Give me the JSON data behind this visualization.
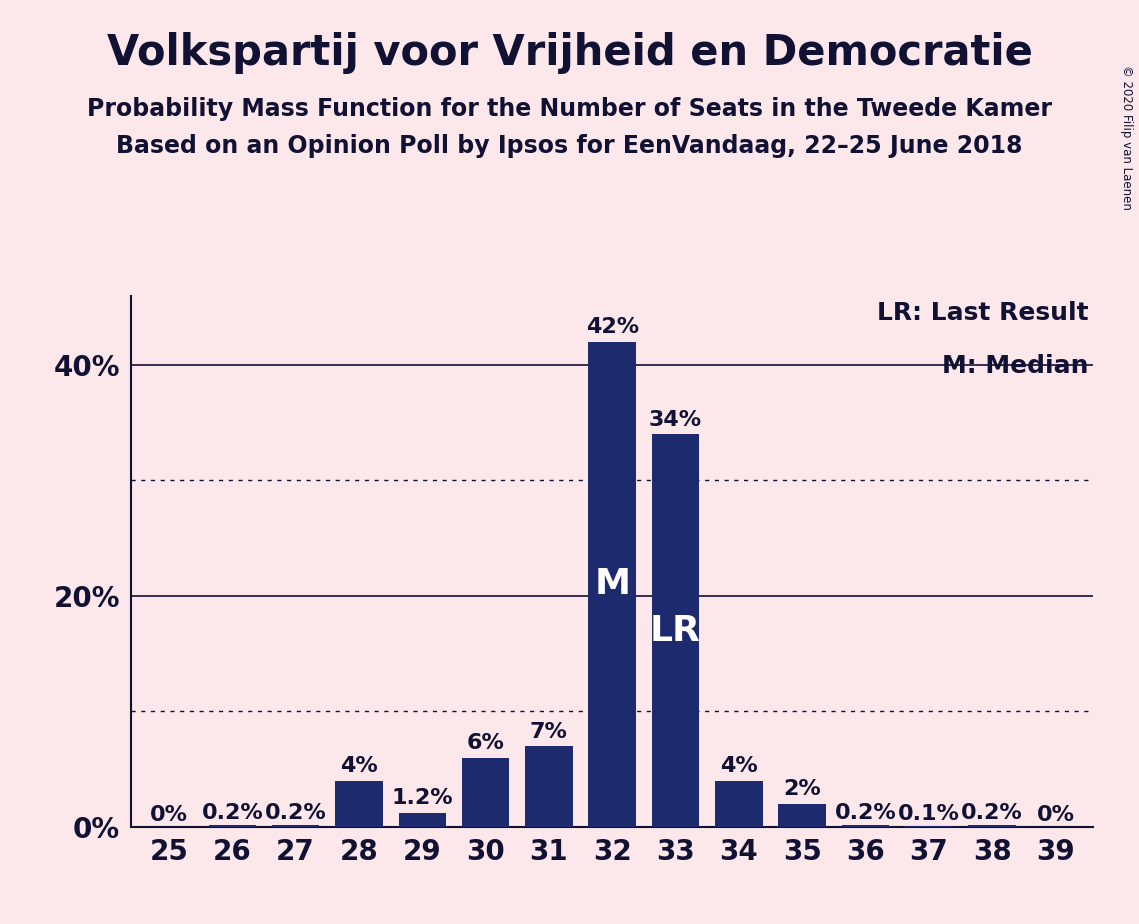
{
  "title": "Volkspartij voor Vrijheid en Democratie",
  "subtitle1": "Probability Mass Function for the Number of Seats in the Tweede Kamer",
  "subtitle2": "Based on an Opinion Poll by Ipsos for EenVandaag, 22–25 June 2018",
  "copyright": "© 2020 Filip van Laenen",
  "seats": [
    25,
    26,
    27,
    28,
    29,
    30,
    31,
    32,
    33,
    34,
    35,
    36,
    37,
    38,
    39
  ],
  "probabilities": [
    0.0,
    0.2,
    0.2,
    4.0,
    1.2,
    6.0,
    7.0,
    42.0,
    34.0,
    4.0,
    2.0,
    0.2,
    0.1,
    0.2,
    0.0
  ],
  "labels": [
    "0%",
    "0.2%",
    "0.2%",
    "4%",
    "1.2%",
    "6%",
    "7%",
    "42%",
    "34%",
    "4%",
    "2%",
    "0.2%",
    "0.1%",
    "0.2%",
    "0%"
  ],
  "bar_color": "#1e2a6e",
  "background_color": "#fce8ea",
  "median_seat": 32,
  "last_result_seat": 33,
  "median_label": "M",
  "lr_label": "LR",
  "legend_lr": "LR: Last Result",
  "legend_m": "M: Median",
  "yticks": [
    0,
    10,
    20,
    30,
    40
  ],
  "ytick_shown": [
    0,
    20,
    40
  ],
  "ylim": [
    0,
    46
  ],
  "dotted_yticks": [
    10,
    30
  ],
  "solid_yticks": [
    0,
    20,
    40
  ],
  "title_fontsize": 30,
  "subtitle_fontsize": 17,
  "axis_label_fontsize": 20,
  "bar_label_fontsize": 16,
  "legend_fontsize": 18,
  "inbar_label_fontsize": 26,
  "text_color": "#111133"
}
